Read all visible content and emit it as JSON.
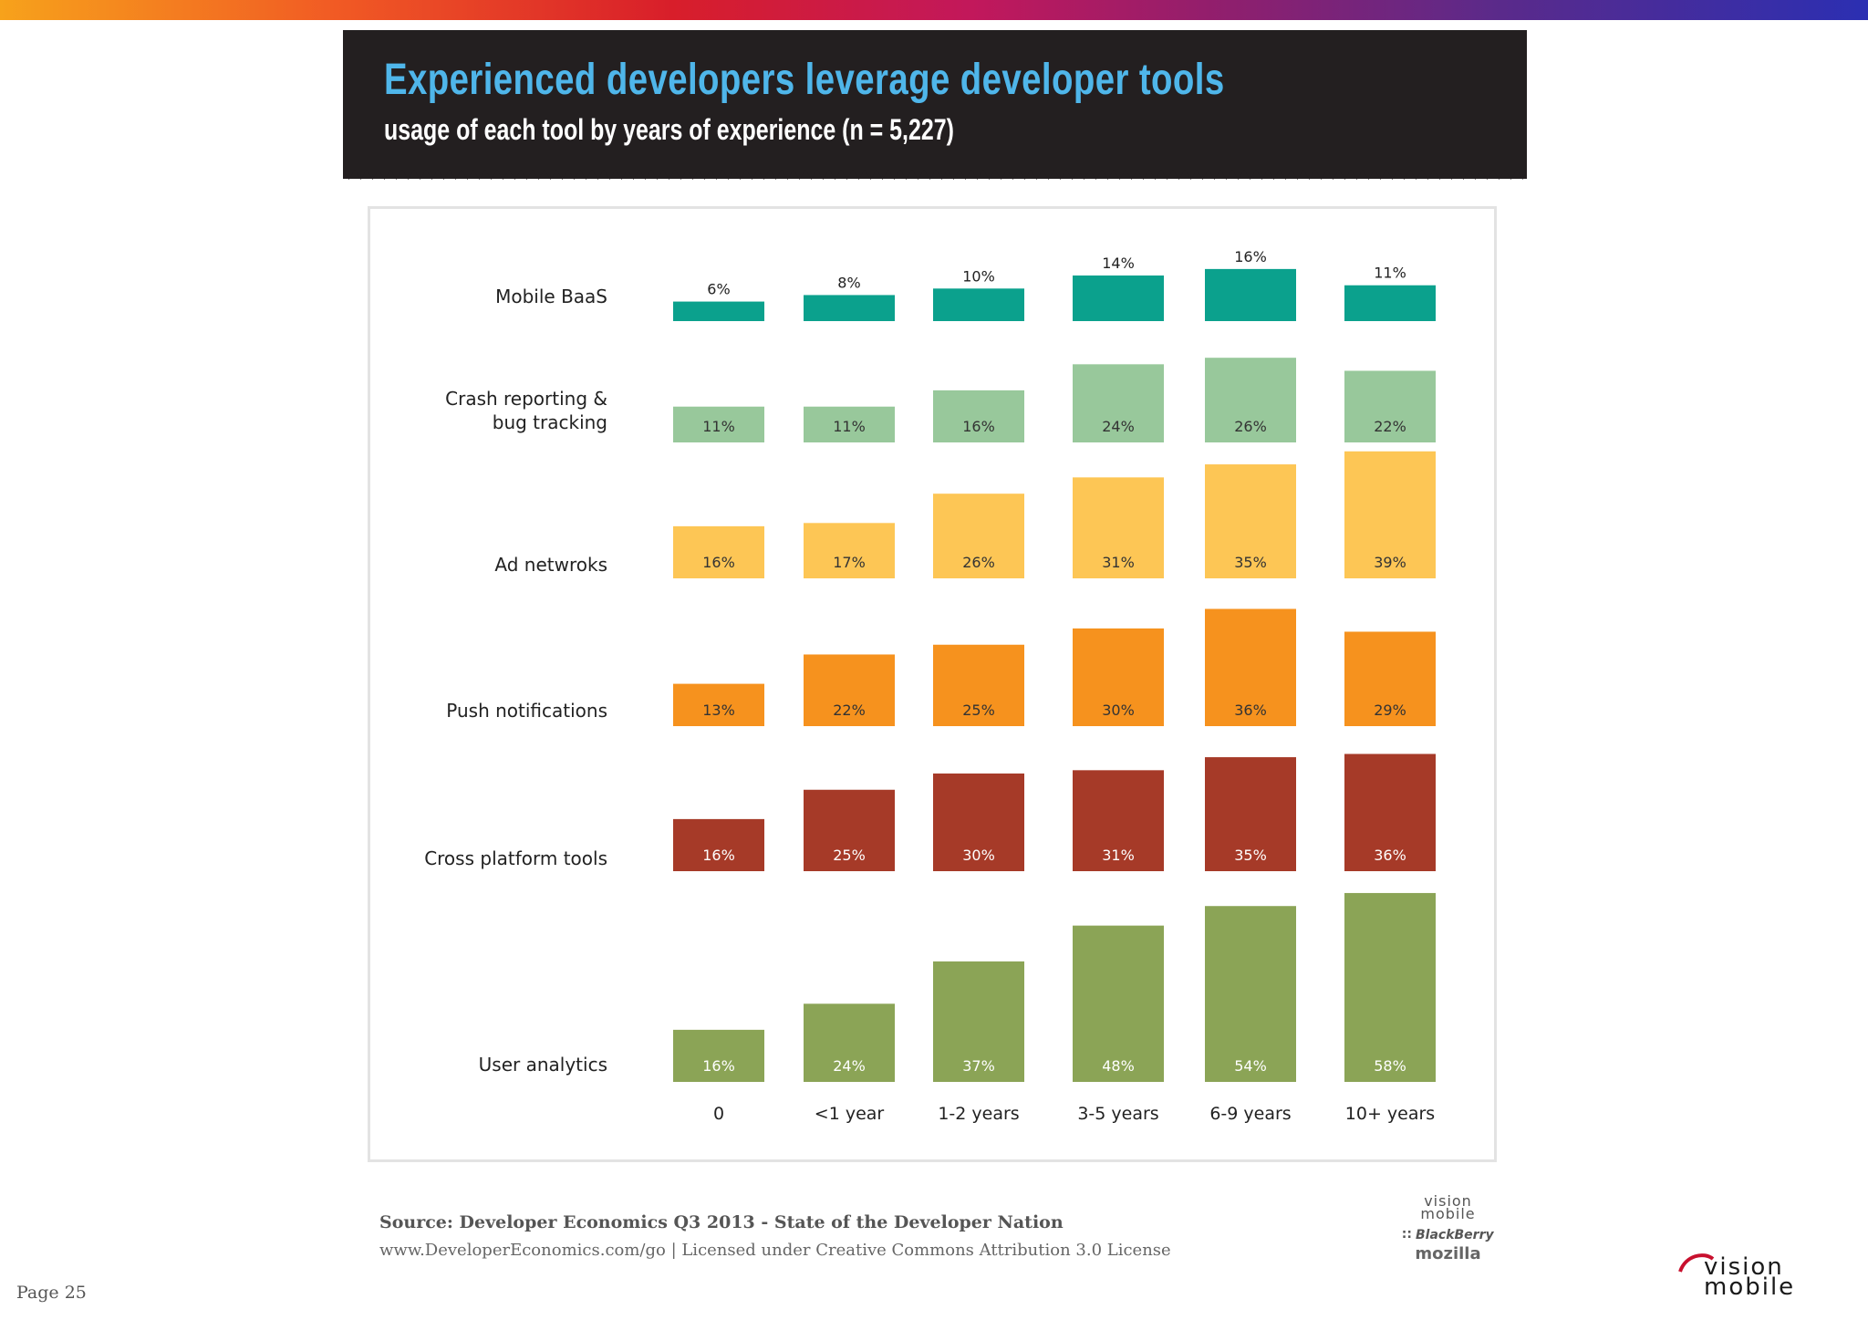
{
  "banner": {
    "title": "Experienced developers leverage developer tools",
    "subtitle": "usage of each tool by years of experience (n = 5,227)"
  },
  "colors": {
    "Mobile BaaS": "#0ba18d",
    "Crash reporting & bug tracking": "#98c89b",
    "Ad netwroks": "#fdc655",
    "Push notifications": "#f6921e",
    "Cross platform tools": "#a63a28",
    "User analytics": "#8ba456"
  },
  "chart_data": {
    "type": "bar",
    "title": "usage of each tool by years of experience (n = 5,227)",
    "categories": [
      "0",
      "<1 year",
      "1-2 years",
      "3-5 years",
      "6-9 years",
      "10+ years"
    ],
    "series": [
      {
        "name": "Mobile BaaS",
        "values": [
          6,
          8,
          10,
          14,
          16,
          11
        ],
        "labels": [
          "6%",
          "8%",
          "10%",
          "14%",
          "16%",
          "11%"
        ]
      },
      {
        "name": "Crash reporting & bug tracking",
        "values": [
          11,
          11,
          16,
          24,
          26,
          22
        ],
        "labels": [
          "11%",
          "11%",
          "16%",
          "24%",
          "26%",
          "22%"
        ]
      },
      {
        "name": "Ad netwroks",
        "values": [
          16,
          17,
          26,
          31,
          35,
          39
        ],
        "labels": [
          "16%",
          "17%",
          "26%",
          "31%",
          "35%",
          "39%"
        ]
      },
      {
        "name": "Push notifications",
        "values": [
          13,
          22,
          25,
          30,
          36,
          29
        ],
        "labels": [
          "13%",
          "22%",
          "25%",
          "30%",
          "36%",
          "29%"
        ]
      },
      {
        "name": "Cross platform tools",
        "values": [
          16,
          25,
          30,
          31,
          35,
          36
        ],
        "labels": [
          "16%",
          "25%",
          "30%",
          "31%",
          "35%",
          "36%"
        ]
      },
      {
        "name": "User analytics",
        "values": [
          16,
          24,
          37,
          48,
          54,
          58
        ],
        "labels": [
          "16%",
          "24%",
          "37%",
          "48%",
          "54%",
          "58%"
        ]
      }
    ],
    "row_labels": [
      [
        "Mobile BaaS"
      ],
      [
        "Crash reporting &",
        "bug tracking"
      ],
      [
        "Ad netwroks"
      ],
      [
        "Push notifications"
      ],
      [
        "Cross platform tools"
      ],
      [
        "User analytics"
      ]
    ],
    "unit": "%"
  },
  "footer": {
    "source": "Source: Developer Economics Q3 2013 - State of the Developer Nation",
    "license": "www.DeveloperEconomics.com/go | Licensed under Creative Commons Attribution 3.0 License",
    "page": "Page 25",
    "logos": {
      "visionmobile_small": [
        "vision",
        "mobile"
      ],
      "blackberry": "BlackBerry",
      "mozilla": "mozilla",
      "visionmobile_large": [
        "vision",
        "mobile"
      ]
    }
  }
}
